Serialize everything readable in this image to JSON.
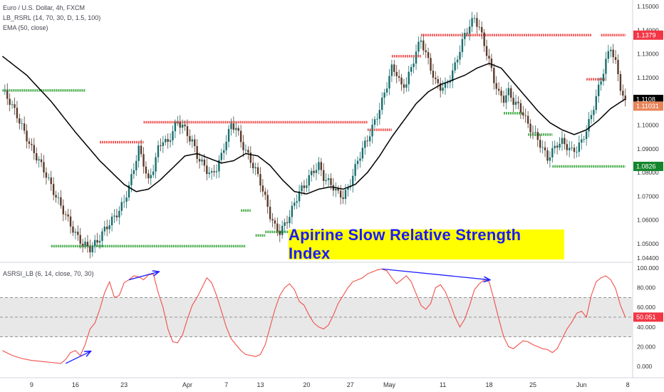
{
  "legend_main": [
    "Euro / U.S. Dollar, 4h, FXCM",
    "LB_RSRL (14, 70, 30, D, 1.5, 100)",
    "EMA (50, close)"
  ],
  "legend_osc": "ASRSI_LB (6, 14, close, 70, 30)",
  "banner": "Apirine Slow Relative Strength Index",
  "colors": {
    "red_level": "#f05a5a",
    "green_level": "#4caf50",
    "ema": "#000000",
    "osc": "#f0504b",
    "arrow": "#1f1fff",
    "band": "#e8e8e8"
  },
  "chart_data": [
    {
      "type": "line",
      "name": "price",
      "ylim": [
        1.044,
        1.15
      ],
      "y_ticks": [
        "1.15000",
        "1.14000",
        "1.13000",
        "1.12000",
        "1.11000",
        "1.10000",
        "1.09000",
        "1.08000",
        "1.07000",
        "1.06000",
        "1.05000",
        "1.04400"
      ],
      "y_tick_values": [
        1.15,
        1.14,
        1.13,
        1.12,
        1.11,
        1.1,
        1.09,
        1.08,
        1.07,
        1.06,
        1.05,
        1.044
      ],
      "price_tags": [
        {
          "label": "1.1379",
          "value": 1.1379,
          "bg": "#f23645",
          "fg": "#ffffff"
        },
        {
          "label": "1.1108",
          "value": 1.1108,
          "bg": "#000000",
          "fg": "#ffffff"
        },
        {
          "label": "1.11031",
          "value": 1.108,
          "bg": "#e8845a",
          "fg": "#ffffff"
        },
        {
          "label": "1.0826",
          "value": 1.0826,
          "bg": "#14852d",
          "fg": "#ffffff"
        }
      ],
      "close_series": [
        [
          0,
          1.1145
        ],
        [
          3,
          1.11
        ],
        [
          6,
          1.104
        ],
        [
          9,
          1.097
        ],
        [
          12,
          1.09
        ],
        [
          15,
          1.085
        ],
        [
          18,
          1.079
        ],
        [
          21,
          1.072
        ],
        [
          24,
          1.066
        ],
        [
          27,
          1.06
        ],
        [
          30,
          1.054
        ],
        [
          33,
          1.05
        ],
        [
          36,
          1.048
        ],
        [
          39,
          1.051
        ],
        [
          42,
          1.056
        ],
        [
          45,
          1.06
        ],
        [
          48,
          1.064
        ],
        [
          50,
          1.068
        ],
        [
          52,
          1.074
        ],
        [
          54,
          1.082
        ],
        [
          56,
          1.09
        ],
        [
          58,
          1.084
        ],
        [
          60,
          1.076
        ],
        [
          62,
          1.082
        ],
        [
          64,
          1.09
        ],
        [
          66,
          1.094
        ],
        [
          68,
          1.092
        ],
        [
          70,
          1.098
        ],
        [
          72,
          1.101
        ],
        [
          74,
          1.1
        ],
        [
          76,
          1.096
        ],
        [
          78,
          1.093
        ],
        [
          80,
          1.087
        ],
        [
          82,
          1.084
        ],
        [
          84,
          1.081
        ],
        [
          86,
          1.079
        ],
        [
          88,
          1.082
        ],
        [
          90,
          1.087
        ],
        [
          92,
          1.094
        ],
        [
          94,
          1.1
        ],
        [
          96,
          1.099
        ],
        [
          98,
          1.093
        ],
        [
          100,
          1.089
        ],
        [
          102,
          1.085
        ],
        [
          104,
          1.081
        ],
        [
          106,
          1.076
        ],
        [
          108,
          1.069
        ],
        [
          110,
          1.062
        ],
        [
          112,
          1.057
        ],
        [
          114,
          1.055
        ],
        [
          116,
          1.058
        ],
        [
          118,
          1.062
        ],
        [
          120,
          1.067
        ],
        [
          122,
          1.072
        ],
        [
          124,
          1.074
        ],
        [
          126,
          1.078
        ],
        [
          128,
          1.081
        ],
        [
          130,
          1.083
        ],
        [
          132,
          1.078
        ],
        [
          134,
          1.076
        ],
        [
          136,
          1.074
        ],
        [
          138,
          1.071
        ],
        [
          140,
          1.07
        ],
        [
          142,
          1.073
        ],
        [
          144,
          1.079
        ],
        [
          146,
          1.085
        ],
        [
          148,
          1.09
        ],
        [
          150,
          1.094
        ],
        [
          152,
          1.099
        ],
        [
          154,
          1.104
        ],
        [
          156,
          1.11
        ],
        [
          158,
          1.117
        ],
        [
          160,
          1.124
        ],
        [
          162,
          1.122
        ],
        [
          164,
          1.116
        ],
        [
          166,
          1.118
        ],
        [
          168,
          1.124
        ],
        [
          170,
          1.131
        ],
        [
          172,
          1.136
        ],
        [
          174,
          1.13
        ],
        [
          176,
          1.124
        ],
        [
          178,
          1.118
        ],
        [
          180,
          1.116
        ],
        [
          182,
          1.116
        ],
        [
          184,
          1.12
        ],
        [
          186,
          1.125
        ],
        [
          188,
          1.132
        ],
        [
          190,
          1.138
        ],
        [
          192,
          1.142
        ],
        [
          194,
          1.145
        ],
        [
          196,
          1.141
        ],
        [
          198,
          1.134
        ],
        [
          200,
          1.127
        ],
        [
          202,
          1.119
        ],
        [
          204,
          1.113
        ],
        [
          206,
          1.111
        ],
        [
          208,
          1.114
        ],
        [
          210,
          1.11
        ],
        [
          212,
          1.108
        ],
        [
          214,
          1.105
        ],
        [
          216,
          1.1
        ],
        [
          218,
          1.097
        ],
        [
          220,
          1.094
        ],
        [
          222,
          1.09
        ],
        [
          224,
          1.086
        ],
        [
          226,
          1.089
        ],
        [
          228,
          1.092
        ],
        [
          230,
          1.093
        ],
        [
          232,
          1.091
        ],
        [
          234,
          1.089
        ],
        [
          236,
          1.09
        ],
        [
          238,
          1.093
        ],
        [
          240,
          1.098
        ],
        [
          242,
          1.104
        ],
        [
          244,
          1.112
        ],
        [
          246,
          1.119
        ],
        [
          248,
          1.127
        ],
        [
          250,
          1.133
        ],
        [
          252,
          1.126
        ],
        [
          254,
          1.116
        ],
        [
          256,
          1.109
        ]
      ],
      "ema_series": [
        [
          0,
          1.129
        ],
        [
          10,
          1.121
        ],
        [
          20,
          1.11
        ],
        [
          30,
          1.097
        ],
        [
          40,
          1.085
        ],
        [
          50,
          1.075
        ],
        [
          55,
          1.072
        ],
        [
          60,
          1.073
        ],
        [
          65,
          1.077
        ],
        [
          70,
          1.082
        ],
        [
          75,
          1.087
        ],
        [
          80,
          1.088
        ],
        [
          85,
          1.086
        ],
        [
          90,
          1.084
        ],
        [
          95,
          1.085
        ],
        [
          100,
          1.088
        ],
        [
          105,
          1.087
        ],
        [
          110,
          1.083
        ],
        [
          115,
          1.077
        ],
        [
          120,
          1.072
        ],
        [
          125,
          1.071
        ],
        [
          130,
          1.073
        ],
        [
          135,
          1.074
        ],
        [
          140,
          1.073
        ],
        [
          145,
          1.075
        ],
        [
          150,
          1.08
        ],
        [
          155,
          1.087
        ],
        [
          160,
          1.095
        ],
        [
          165,
          1.102
        ],
        [
          170,
          1.109
        ],
        [
          175,
          1.114
        ],
        [
          180,
          1.117
        ],
        [
          185,
          1.119
        ],
        [
          190,
          1.121
        ],
        [
          195,
          1.124
        ],
        [
          200,
          1.126
        ],
        [
          205,
          1.124
        ],
        [
          210,
          1.118
        ],
        [
          215,
          1.112
        ],
        [
          220,
          1.106
        ],
        [
          225,
          1.101
        ],
        [
          230,
          1.098
        ],
        [
          235,
          1.096
        ],
        [
          240,
          1.098
        ],
        [
          245,
          1.102
        ],
        [
          250,
          1.107
        ],
        [
          256,
          1.111
        ]
      ],
      "red_levels": [
        {
          "from": 0,
          "to": 34,
          "value": 1.1146,
          "kind": "green"
        },
        {
          "from": 20,
          "to": 100,
          "value": 1.049,
          "kind": "green"
        },
        {
          "from": 40,
          "to": 58,
          "value": 1.0928,
          "kind": "red"
        },
        {
          "from": 58,
          "to": 150,
          "value": 1.1012,
          "kind": "red"
        },
        {
          "from": 150,
          "to": 160,
          "value": 1.098,
          "kind": "red"
        },
        {
          "from": 160,
          "to": 172,
          "value": 1.129,
          "kind": "red"
        },
        {
          "from": 172,
          "to": 242,
          "value": 1.1379,
          "kind": "red"
        },
        {
          "from": 98,
          "to": 102,
          "value": 1.064,
          "kind": "green"
        },
        {
          "from": 104,
          "to": 108,
          "value": 1.0535,
          "kind": "green"
        },
        {
          "from": 108,
          "to": 204,
          "value": 1.055,
          "kind": "green"
        },
        {
          "from": 206,
          "to": 214,
          "value": 1.105,
          "kind": "green"
        },
        {
          "from": 216,
          "to": 226,
          "value": 1.096,
          "kind": "green"
        },
        {
          "from": 226,
          "to": 256,
          "value": 1.0826,
          "kind": "green"
        },
        {
          "from": 240,
          "to": 248,
          "value": 1.1193,
          "kind": "red"
        },
        {
          "from": 246,
          "to": 256,
          "value": 1.1379,
          "kind": "red"
        }
      ],
      "x_labels": [
        {
          "label": "9",
          "i": 12
        },
        {
          "label": "16",
          "i": 30
        },
        {
          "label": "23",
          "i": 50
        },
        {
          "label": "Apr",
          "i": 76
        },
        {
          "label": "7",
          "i": 92
        },
        {
          "label": "13",
          "i": 106
        },
        {
          "label": "20",
          "i": 125
        },
        {
          "label": "27",
          "i": 143
        },
        {
          "label": "May",
          "i": 159
        },
        {
          "label": "11",
          "i": 181
        },
        {
          "label": "18",
          "i": 200
        },
        {
          "label": "25",
          "i": 218
        },
        {
          "label": "Jun",
          "i": 238
        },
        {
          "label": "8",
          "i": 257
        }
      ],
      "x_range": [
        -1,
        259
      ]
    },
    {
      "type": "line",
      "name": "oscillator",
      "ylim": [
        0,
        100
      ],
      "y_ticks": [
        "100.000",
        "80.000",
        "60.000",
        "40.000",
        "20.000",
        "0.000"
      ],
      "y_tick_values": [
        100,
        80,
        60,
        40,
        20,
        0
      ],
      "band": [
        30,
        70
      ],
      "midline": 50,
      "last_tag": {
        "label": "50.051",
        "value": 50.051
      },
      "series": [
        [
          0,
          16
        ],
        [
          4,
          11
        ],
        [
          8,
          8
        ],
        [
          12,
          6
        ],
        [
          16,
          5
        ],
        [
          20,
          4
        ],
        [
          24,
          3
        ],
        [
          26,
          7
        ],
        [
          28,
          14
        ],
        [
          30,
          16
        ],
        [
          32,
          11
        ],
        [
          34,
          22
        ],
        [
          36,
          38
        ],
        [
          38,
          44
        ],
        [
          40,
          58
        ],
        [
          42,
          75
        ],
        [
          44,
          86
        ],
        [
          46,
          70
        ],
        [
          48,
          72
        ],
        [
          50,
          85
        ],
        [
          52,
          88
        ],
        [
          54,
          92
        ],
        [
          56,
          91
        ],
        [
          58,
          88
        ],
        [
          60,
          93
        ],
        [
          62,
          94
        ],
        [
          64,
          75
        ],
        [
          66,
          60
        ],
        [
          68,
          38
        ],
        [
          70,
          25
        ],
        [
          72,
          24
        ],
        [
          74,
          32
        ],
        [
          76,
          48
        ],
        [
          78,
          62
        ],
        [
          80,
          70
        ],
        [
          82,
          80
        ],
        [
          84,
          90
        ],
        [
          86,
          85
        ],
        [
          88,
          72
        ],
        [
          90,
          56
        ],
        [
          92,
          40
        ],
        [
          94,
          28
        ],
        [
          96,
          22
        ],
        [
          98,
          16
        ],
        [
          100,
          12
        ],
        [
          102,
          11
        ],
        [
          104,
          10
        ],
        [
          106,
          12
        ],
        [
          108,
          22
        ],
        [
          110,
          40
        ],
        [
          112,
          58
        ],
        [
          114,
          72
        ],
        [
          116,
          80
        ],
        [
          118,
          84
        ],
        [
          120,
          78
        ],
        [
          122,
          66
        ],
        [
          124,
          62
        ],
        [
          126,
          52
        ],
        [
          128,
          44
        ],
        [
          130,
          40
        ],
        [
          132,
          38
        ],
        [
          134,
          42
        ],
        [
          136,
          52
        ],
        [
          138,
          64
        ],
        [
          140,
          72
        ],
        [
          142,
          80
        ],
        [
          144,
          86
        ],
        [
          146,
          88
        ],
        [
          148,
          90
        ],
        [
          150,
          94
        ],
        [
          152,
          96
        ],
        [
          154,
          98
        ],
        [
          156,
          99
        ],
        [
          158,
          97
        ],
        [
          160,
          90
        ],
        [
          162,
          84
        ],
        [
          164,
          88
        ],
        [
          166,
          92
        ],
        [
          168,
          86
        ],
        [
          170,
          74
        ],
        [
          172,
          62
        ],
        [
          174,
          58
        ],
        [
          176,
          64
        ],
        [
          178,
          80
        ],
        [
          180,
          83
        ],
        [
          182,
          76
        ],
        [
          184,
          64
        ],
        [
          186,
          50
        ],
        [
          188,
          40
        ],
        [
          190,
          48
        ],
        [
          192,
          62
        ],
        [
          194,
          78
        ],
        [
          196,
          84
        ],
        [
          198,
          88
        ],
        [
          200,
          86
        ],
        [
          202,
          68
        ],
        [
          204,
          48
        ],
        [
          206,
          30
        ],
        [
          208,
          20
        ],
        [
          210,
          18
        ],
        [
          212,
          22
        ],
        [
          214,
          26
        ],
        [
          216,
          25
        ],
        [
          218,
          22
        ],
        [
          220,
          20
        ],
        [
          222,
          18
        ],
        [
          224,
          17
        ],
        [
          226,
          14
        ],
        [
          228,
          18
        ],
        [
          230,
          28
        ],
        [
          232,
          38
        ],
        [
          234,
          45
        ],
        [
          236,
          54
        ],
        [
          238,
          56
        ],
        [
          240,
          50
        ],
        [
          242,
          72
        ],
        [
          244,
          86
        ],
        [
          246,
          90
        ],
        [
          248,
          92
        ],
        [
          250,
          88
        ],
        [
          252,
          79
        ],
        [
          254,
          62
        ],
        [
          256,
          50
        ]
      ],
      "arrows": [
        {
          "from": [
            26,
            3
          ],
          "to": [
            36,
            15
          ]
        },
        {
          "from": [
            52,
            88
          ],
          "to": [
            64,
            96
          ]
        },
        {
          "from": [
            156,
            99
          ],
          "to": [
            200,
            88
          ]
        }
      ]
    }
  ]
}
